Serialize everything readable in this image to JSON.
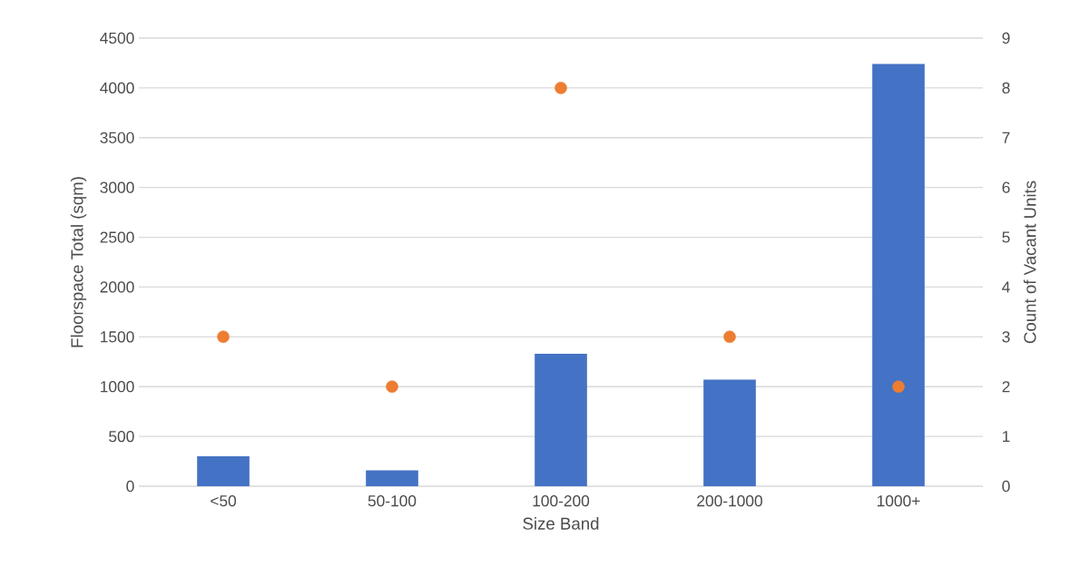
{
  "chart_data": {
    "type": "bar",
    "categories": [
      "<50",
      "50-100",
      "100-200",
      "200-1000",
      "1000+"
    ],
    "xlabel": "Size Band",
    "ylabel": "Floorspace Total (sqm)",
    "y2label": "Count of Vacant Units",
    "ylim": [
      0,
      4500
    ],
    "yticks": [
      0,
      500,
      1000,
      1500,
      2000,
      2500,
      3000,
      3500,
      4000,
      4500
    ],
    "y2lim": [
      0,
      9
    ],
    "y2ticks": [
      0,
      1,
      2,
      3,
      4,
      5,
      6,
      7,
      8,
      9
    ],
    "grid": "y",
    "legend": false,
    "marker": "circle",
    "series": [
      {
        "color": "#4472c4",
        "values": [
          300,
          160,
          1330,
          1070,
          4240
        ]
      },
      {
        "type": "scatter",
        "axis": "y2",
        "color": "#ed7d31",
        "values": [
          3,
          2,
          8,
          3,
          2
        ]
      }
    ]
  }
}
